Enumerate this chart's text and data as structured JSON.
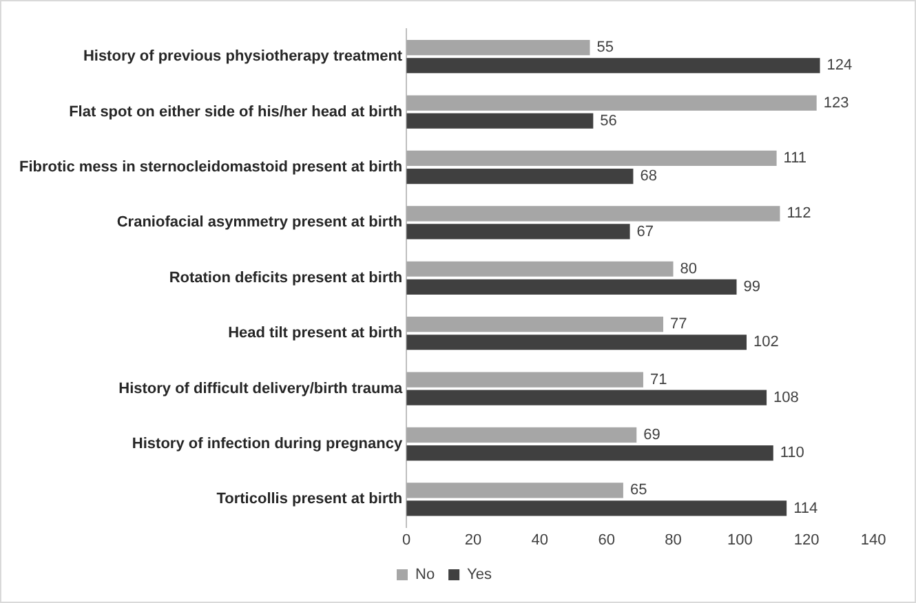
{
  "chart_data": {
    "type": "bar",
    "orientation": "horizontal",
    "categories": [
      "History of previous physiotherapy treatment",
      "Flat spot on either side of his/her head at birth",
      "Fibrotic mess in sternocleidomastoid present at birth",
      "Craniofacial asymmetry present at birth",
      "Rotation deficits present at birth",
      "Head tilt present at birth",
      "History of difficult delivery/birth trauma",
      "History of infection during pregnancy",
      "Torticollis present at birth"
    ],
    "series": [
      {
        "name": "No",
        "color": "#a6a6a6",
        "values": [
          55,
          123,
          111,
          112,
          80,
          77,
          71,
          69,
          65
        ]
      },
      {
        "name": "Yes",
        "color": "#404040",
        "values": [
          124,
          56,
          68,
          67,
          99,
          102,
          108,
          110,
          114
        ]
      }
    ],
    "xlim": [
      0,
      140
    ],
    "xticks": [
      0,
      20,
      40,
      60,
      80,
      100,
      120,
      140
    ],
    "grid": false,
    "legend": "bottom",
    "data_labels": true
  }
}
